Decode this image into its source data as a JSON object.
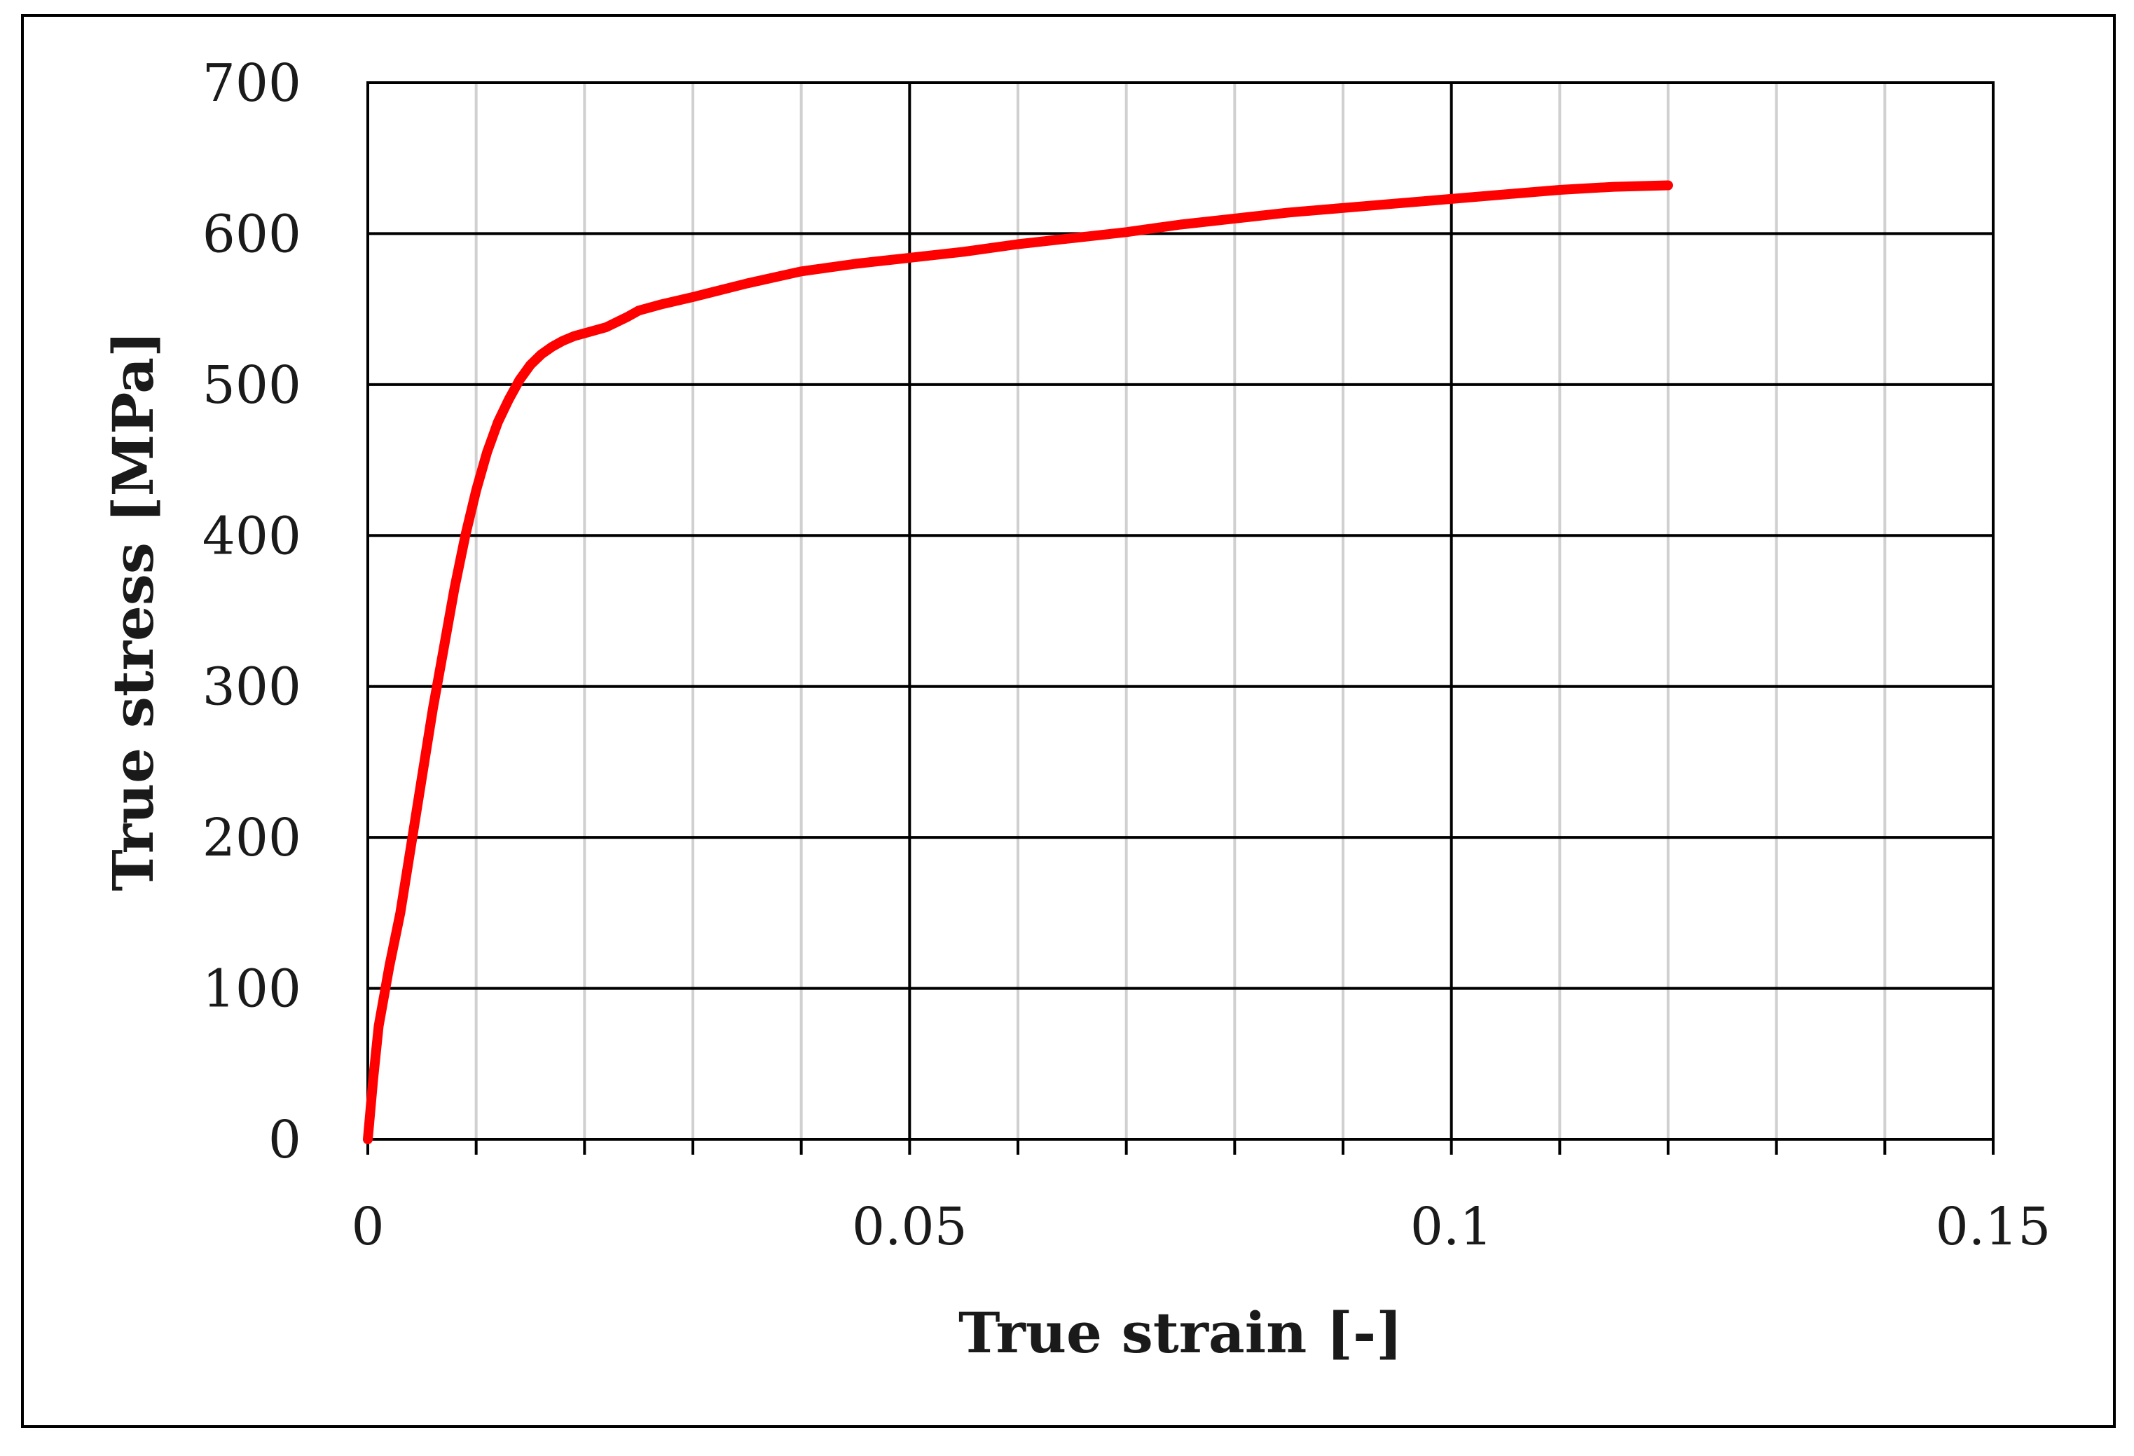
{
  "chart_data": {
    "type": "line",
    "title": "",
    "xlabel": "True strain [-]",
    "ylabel": "True stress [MPa]",
    "xlim": [
      0,
      0.15
    ],
    "ylim": [
      0,
      700
    ],
    "x_major_ticks": [
      0,
      0.05,
      0.1,
      0.15
    ],
    "x_tick_labels": [
      "0",
      "0.05",
      "0.1",
      "0.15"
    ],
    "x_minor_step": 0.01,
    "y_major_ticks": [
      0,
      100,
      200,
      300,
      400,
      500,
      600,
      700
    ],
    "y_tick_labels": [
      "0",
      "100",
      "200",
      "300",
      "400",
      "500",
      "600",
      "700"
    ],
    "grid": true,
    "legend": "none",
    "series": [
      {
        "color": "#ff0000",
        "x": [
          0,
          0.0005,
          0.001,
          0.002,
          0.003,
          0.004,
          0.005,
          0.006,
          0.007,
          0.008,
          0.009,
          0.01,
          0.011,
          0.012,
          0.013,
          0.014,
          0.015,
          0.016,
          0.017,
          0.018,
          0.019,
          0.02,
          0.022,
          0.024,
          0.025,
          0.027,
          0.03,
          0.035,
          0.04,
          0.045,
          0.05,
          0.055,
          0.06,
          0.065,
          0.07,
          0.075,
          0.08,
          0.085,
          0.09,
          0.095,
          0.1,
          0.105,
          0.11,
          0.115,
          0.12
        ],
        "y": [
          0,
          40,
          75,
          115,
          150,
          195,
          240,
          285,
          325,
          365,
          400,
          430,
          455,
          475,
          490,
          503,
          513,
          520,
          525,
          529,
          532,
          534,
          538,
          545,
          549,
          553,
          558,
          567,
          575,
          580,
          584,
          588,
          593,
          597,
          601,
          606,
          610,
          614,
          617,
          620,
          623,
          626,
          629,
          631,
          632
        ]
      }
    ]
  }
}
